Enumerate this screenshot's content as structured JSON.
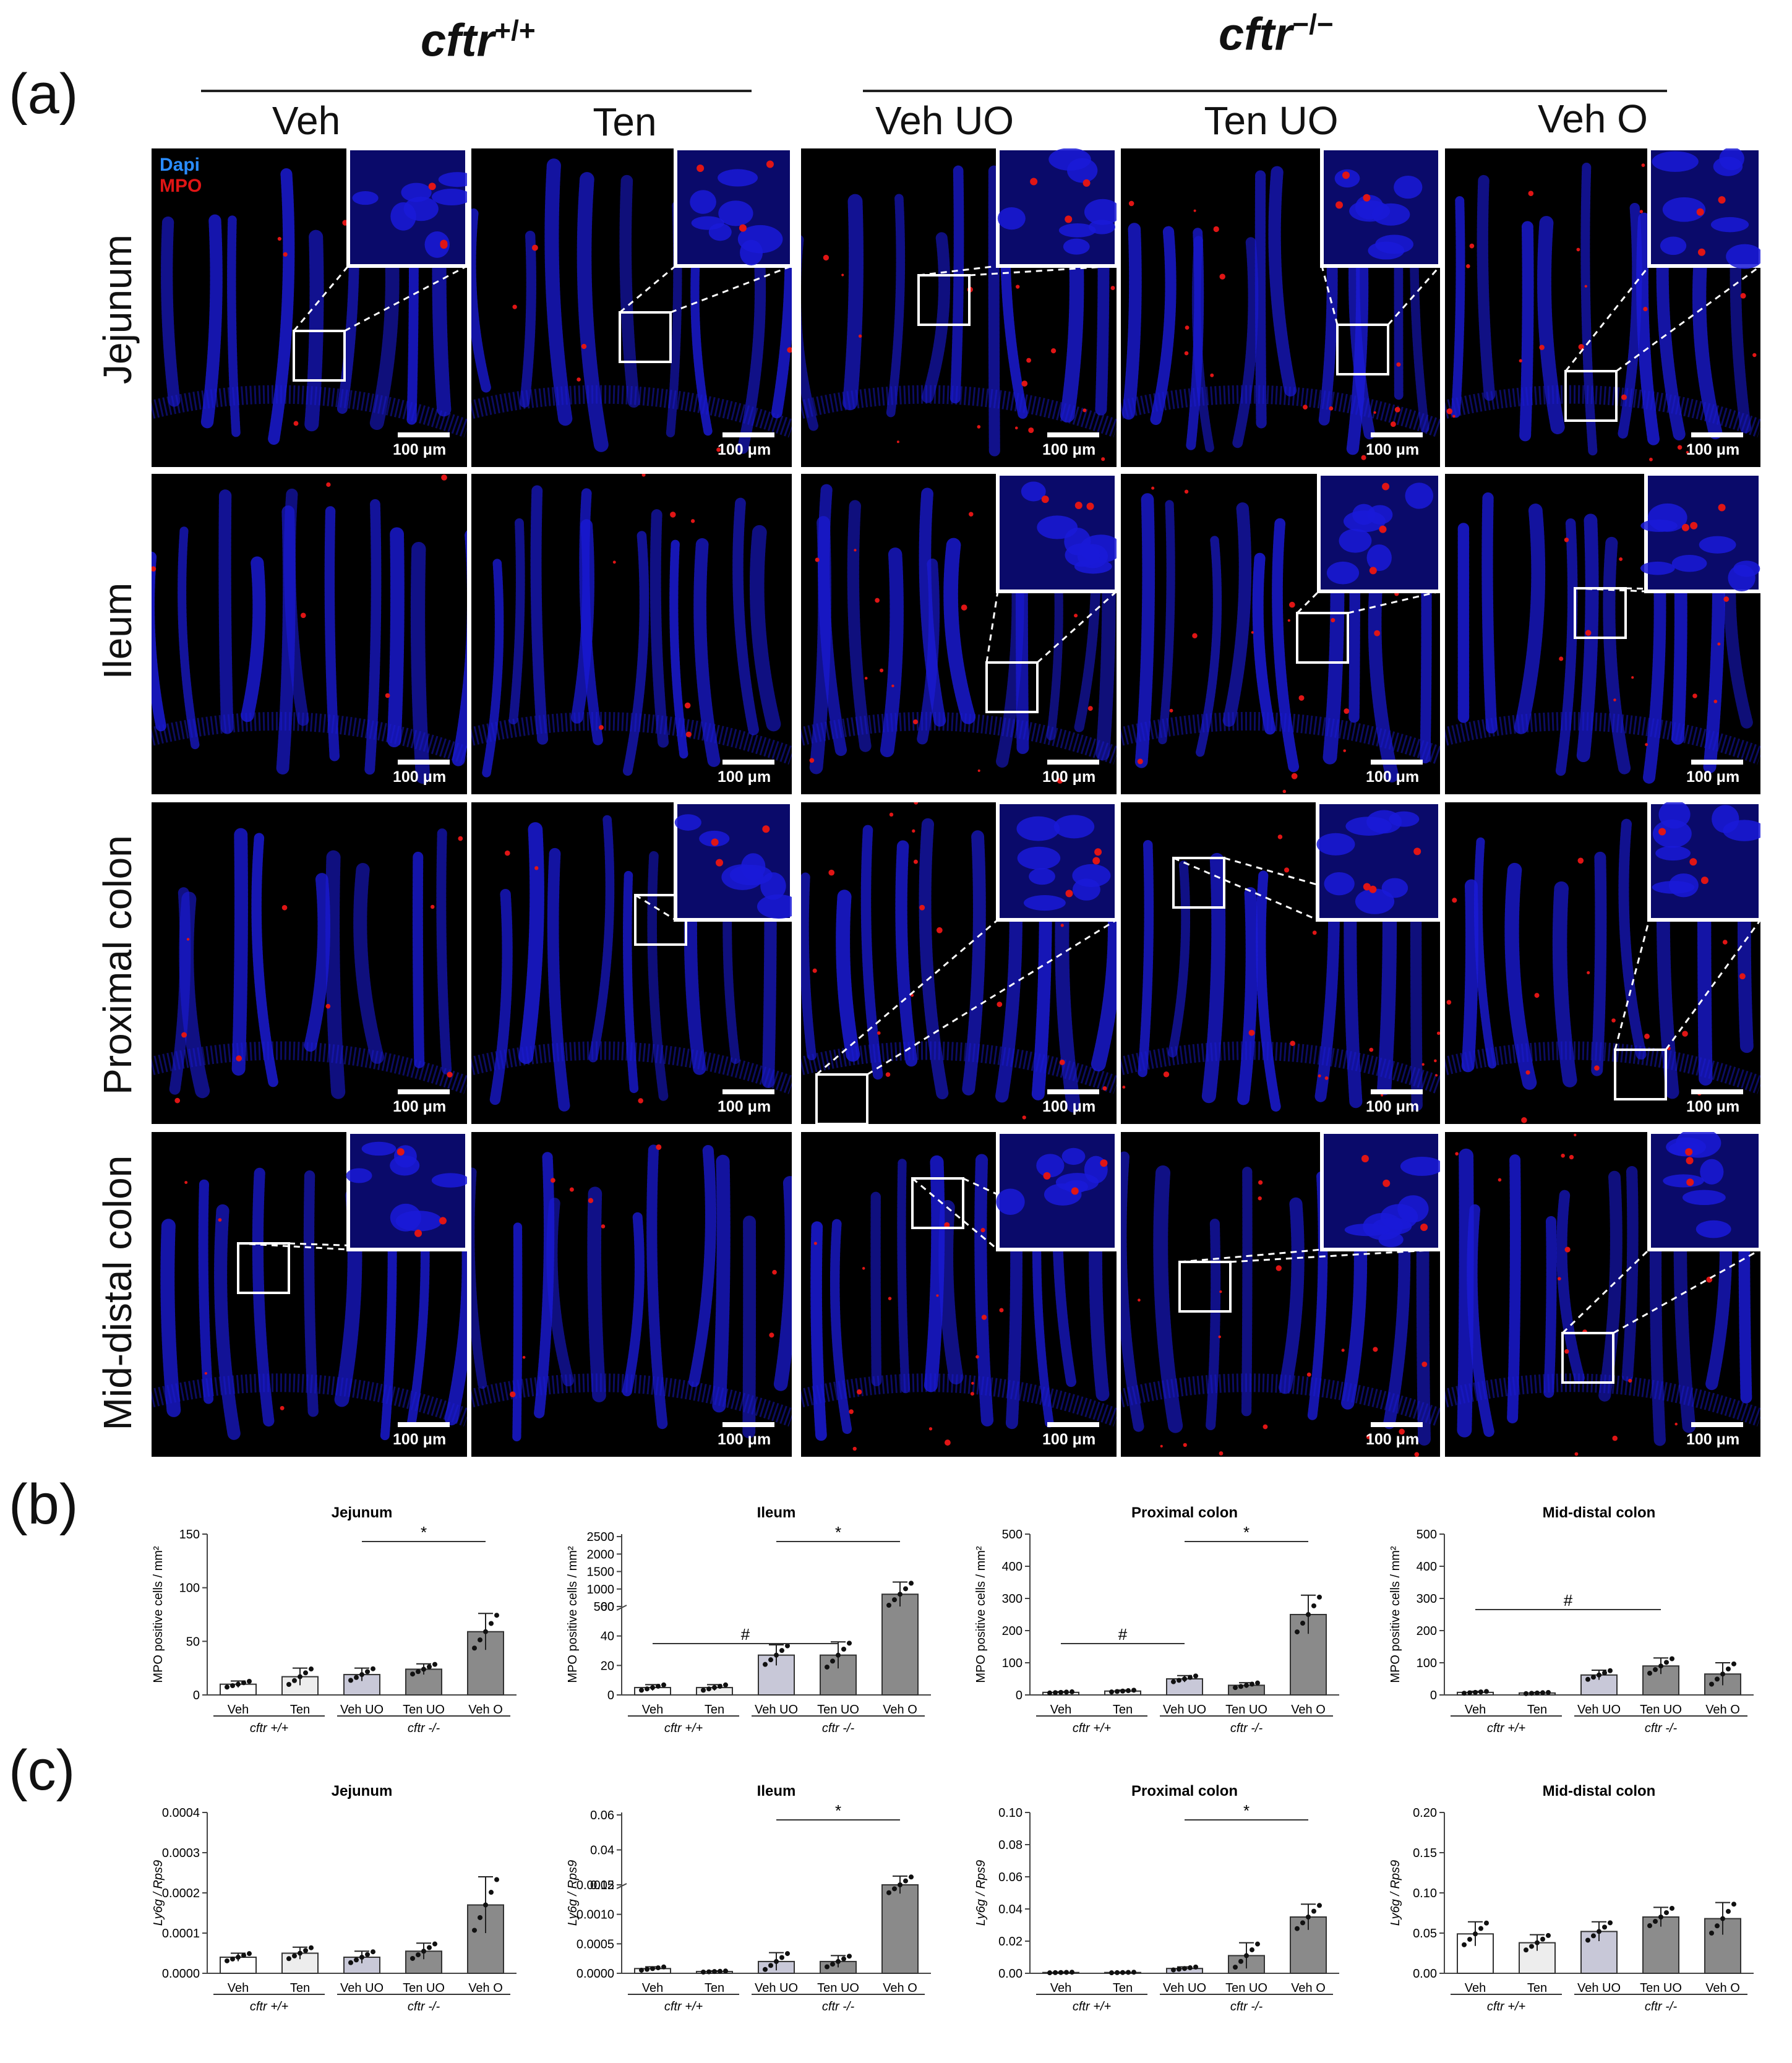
{
  "figure": {
    "panel_letters": [
      "(a)",
      "(b)",
      "(c)"
    ],
    "genotypes": {
      "wt": {
        "base": "cftr",
        "sup": "+/+"
      },
      "ko": {
        "base": "cftr",
        "sup": "−/−"
      }
    },
    "legend": {
      "dapi": "Dapi",
      "mpo": "MPO"
    },
    "scale_label": "100 μm",
    "columns": [
      "Veh",
      "Ten",
      "Veh UO",
      "Ten UO",
      "Veh O"
    ],
    "rows": [
      "Jejunum",
      "Ileum",
      "Proximal colon",
      "Mid-distal colon"
    ],
    "colors": {
      "dapi_blue": "#1a1ad8",
      "mpo_red": "#e01515",
      "inset_border": "#ffffff"
    }
  },
  "group_labels": {
    "wt": "cftr +/+",
    "ko": "cftr -/-"
  },
  "chart_data": [
    {
      "type": "bar",
      "panel": "b",
      "title": "Jejunum",
      "ylabel": "MPO positive cells / mm²",
      "categories": [
        "Veh",
        "Ten",
        "Veh UO",
        "Ten UO",
        "Veh O"
      ],
      "values": [
        10,
        17,
        19,
        24,
        59
      ],
      "errors": [
        3,
        8,
        6,
        5,
        17
      ],
      "ylim": [
        0,
        150
      ],
      "yticks": [
        "0",
        "50",
        "100",
        "150"
      ],
      "significance": [
        {
          "from": 2,
          "to": 4,
          "label": "*"
        }
      ]
    },
    {
      "type": "bar",
      "panel": "b",
      "title": "Ileum",
      "ylabel": "MPO positive cells / mm²",
      "categories": [
        "Veh",
        "Ten",
        "Veh UO",
        "Ten UO",
        "Veh O"
      ],
      "values": [
        5,
        5,
        27,
        27,
        850
      ],
      "errors": [
        2,
        2,
        7,
        9,
        350
      ],
      "yticks": [
        "0",
        "20",
        "40",
        "60",
        "500",
        "1000",
        "1500",
        "2000",
        "2500"
      ],
      "significance": [
        {
          "from": 2,
          "to": 4,
          "label": "*"
        },
        {
          "from": 0,
          "to": 3,
          "label": "#"
        }
      ]
    },
    {
      "type": "bar",
      "panel": "b",
      "title": "Proximal colon",
      "ylabel": "MPO positive cells / mm²",
      "categories": [
        "Veh",
        "Ten",
        "Veh UO",
        "Ten UO",
        "Veh O"
      ],
      "values": [
        8,
        12,
        50,
        30,
        250
      ],
      "errors": [
        2,
        3,
        10,
        8,
        60
      ],
      "ylim": [
        0,
        500
      ],
      "yticks": [
        "0",
        "100",
        "200",
        "300",
        "400",
        "500"
      ],
      "significance": [
        {
          "from": 2,
          "to": 4,
          "label": "*"
        },
        {
          "from": 0,
          "to": 2,
          "label": "#"
        }
      ]
    },
    {
      "type": "bar",
      "panel": "b",
      "title": "Mid-distal colon",
      "ylabel": "MPO positive cells / mm²",
      "categories": [
        "Veh",
        "Ten",
        "Veh UO",
        "Ten UO",
        "Veh O"
      ],
      "values": [
        8,
        6,
        62,
        90,
        65
      ],
      "errors": [
        3,
        2,
        15,
        25,
        35
      ],
      "ylim": [
        0,
        500
      ],
      "yticks": [
        "0",
        "100",
        "200",
        "300",
        "400",
        "500"
      ],
      "significance": [
        {
          "from": 0,
          "to": 3,
          "label": "#"
        }
      ]
    },
    {
      "type": "bar",
      "panel": "c",
      "title": "Jejunum",
      "ylabel": "Ly6g / Rps9",
      "categories": [
        "Veh",
        "Ten",
        "Veh UO",
        "Ten UO",
        "Veh O"
      ],
      "values": [
        4e-05,
        5e-05,
        4e-05,
        5.5e-05,
        0.00017
      ],
      "errors": [
        1e-05,
        1.5e-05,
        1.5e-05,
        2e-05,
        7e-05
      ],
      "ylim": [
        0,
        0.0004
      ],
      "yticks": [
        "0.0000",
        "0.0001",
        "0.0002",
        "0.0003",
        "0.0004"
      ],
      "significance": []
    },
    {
      "type": "bar",
      "panel": "c",
      "title": "Ileum",
      "ylabel": "Ly6g / Rps9",
      "categories": [
        "Veh",
        "Ten",
        "Veh UO",
        "Ten UO",
        "Veh O"
      ],
      "values": [
        8e-05,
        3e-05,
        0.0002,
        0.0002,
        0.02
      ],
      "errors": [
        3e-05,
        1e-05,
        0.00015,
        0.0001,
        0.005
      ],
      "yticks": [
        "0.0000",
        "0.0005",
        "0.0010",
        "0.0015",
        "0.02",
        "0.04",
        "0.06"
      ],
      "significance": [
        {
          "from": 2,
          "to": 4,
          "label": "*"
        }
      ]
    },
    {
      "type": "bar",
      "panel": "c",
      "title": "Proximal colon",
      "ylabel": "Ly6g / Rps9",
      "categories": [
        "Veh",
        "Ten",
        "Veh UO",
        "Ten UO",
        "Veh O"
      ],
      "values": [
        0.0005,
        0.0005,
        0.003,
        0.011,
        0.035
      ],
      "errors": [
        0.0002,
        0.0002,
        0.001,
        0.008,
        0.008
      ],
      "ylim": [
        0,
        0.1
      ],
      "yticks": [
        "0.00",
        "0.02",
        "0.04",
        "0.06",
        "0.08",
        "0.10"
      ],
      "significance": [
        {
          "from": 2,
          "to": 4,
          "label": "*"
        }
      ]
    },
    {
      "type": "bar",
      "panel": "c",
      "title": "Mid-distal colon",
      "ylabel": "Ly6g / Rps9",
      "categories": [
        "Veh",
        "Ten",
        "Veh UO",
        "Ten UO",
        "Veh O"
      ],
      "values": [
        0.049,
        0.038,
        0.052,
        0.07,
        0.068
      ],
      "errors": [
        0.015,
        0.01,
        0.012,
        0.012,
        0.02
      ],
      "ylim": [
        0,
        0.2
      ],
      "yticks": [
        "0.00",
        "0.05",
        "0.10",
        "0.15",
        "0.20"
      ],
      "significance": []
    }
  ]
}
